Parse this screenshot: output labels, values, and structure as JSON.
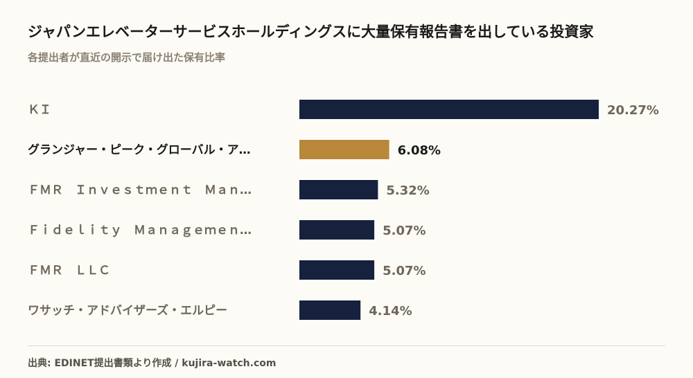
{
  "header": {
    "title": "ジャパンエレベーターサービスホールディングスに大量保有報告書を出している投資家",
    "subtitle": "各提出者が直近の開示で届け出た保有比率"
  },
  "footer": {
    "source": "出典: EDINET提出書類より作成 / kujira-watch.com"
  },
  "colors": {
    "default_bar": "#16213d",
    "highlight_bar": "#b8873a",
    "label_default": "#6f665a",
    "label_highlight": "#1a1a1a"
  },
  "chart_data": {
    "type": "bar",
    "orientation": "horizontal",
    "categories": [
      "ＫＩ",
      "グランジャー・ピーク・グローバル・ア…",
      "ＦＭＲ　Ｉｎｖｅｓｔｍｅｎｔ　Ｍａｎ…",
      "Ｆｉｄｅｌｉｔｙ　Ｍａｎａｇｅｍｅｎ…",
      "ＦＭＲ　ＬＬＣ",
      "ワサッチ・アドバイザーズ・エルピー"
    ],
    "values": [
      20.27,
      6.08,
      5.32,
      5.07,
      5.07,
      4.14
    ],
    "value_labels": [
      "20.27%",
      "6.08%",
      "5.32%",
      "5.07%",
      "5.07%",
      "4.14%"
    ],
    "highlight_index": 1,
    "unit": "%",
    "xlim": [
      0,
      20.27
    ],
    "grid": false,
    "legend": "none"
  }
}
